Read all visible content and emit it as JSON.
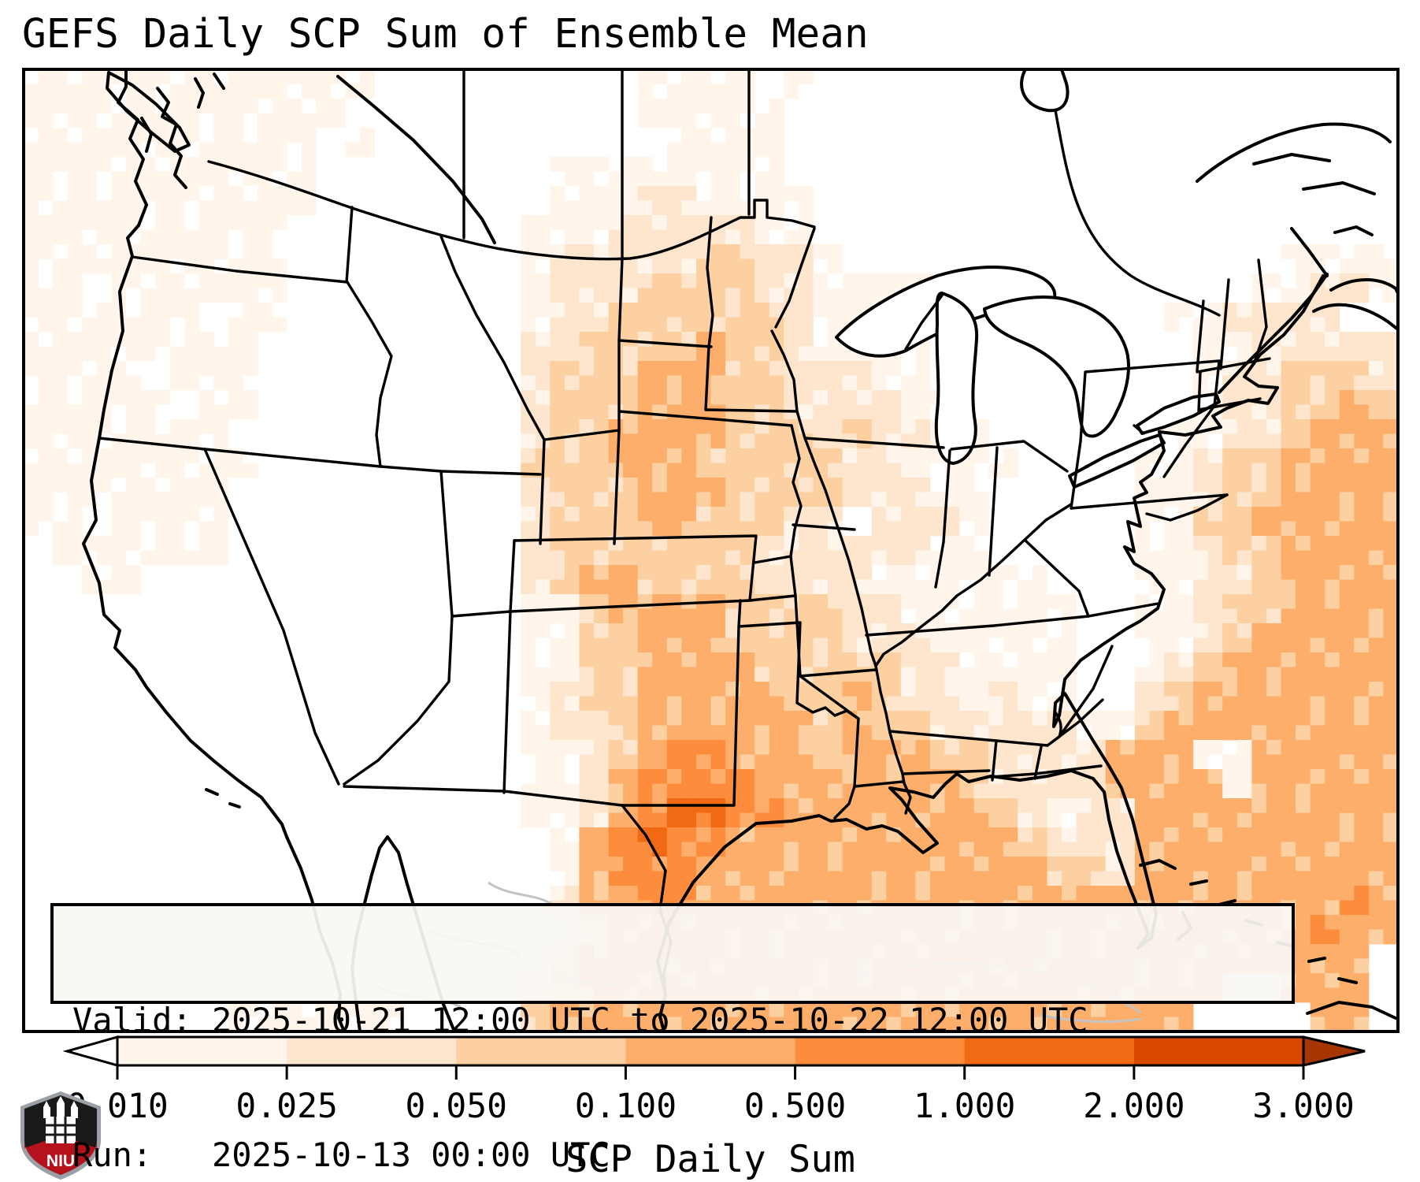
{
  "title": "GEFS Daily SCP Sum of Ensemble Mean",
  "info": {
    "line1": "Valid: 2025-10-21 12:00 UTC to 2025-10-22 12:00 UTC",
    "line2": "Run:   2025-10-13 00:00 UTC"
  },
  "colorbar": {
    "label": "SCP Daily Sum",
    "tick_labels": [
      "0.010",
      "0.025",
      "0.050",
      "0.100",
      "0.500",
      "1.000",
      "2.000",
      "3.000"
    ],
    "segment_colors": [
      "#fff5eb",
      "#fee6ce",
      "#fdd0a2",
      "#fdae6b",
      "#fd8d3c",
      "#f16913",
      "#d94801"
    ],
    "under_color": "#ffffff",
    "over_color": "#a63603",
    "outline_color": "#000000"
  },
  "logo": {
    "text": "NIU",
    "shield_black": "#1a1a1a",
    "shield_red": "#b5121b",
    "shield_trim": "#9aa0a6"
  },
  "chart_data": {
    "type": "heatmap",
    "title": "GEFS Daily SCP Sum of Ensemble Mean",
    "valid": "2025-10-21 12:00 UTC to 2025-10-22 12:00 UTC",
    "run": "2025-10-13 00:00 UTC",
    "colorbar_label": "SCP Daily Sum",
    "levels": [
      0.01,
      0.025,
      0.05,
      0.1,
      0.5,
      1.0,
      2.0,
      3.0
    ],
    "palette": [
      "#ffffff",
      "#fff5eb",
      "#fee6ce",
      "#fdd0a2",
      "#fdae6b",
      "#fd8d3c",
      "#f16913",
      "#d94801"
    ],
    "legend_note": "grid codes: .=<0.01, 1=0.01-0.025, 2=0.025-0.05, 3=0.05-0.1, 4=0.1-0.5, 5=0.5-1, 6=1-2, 7=2-3",
    "grid_rows": [
      "111111111111.........1111.1....................",
      "11111111111..........11111.....................",
      "1111111111.1..........1111.....................",
      "1111111111........11111111.....................",
      "1111111111........111221111....................",
      "111111111........1112222211....................",
      "111111111........12222233221...............1111",
      "11.111111........122233332211111..........11221",
      "111111.11........1223333332111.........112222..",
      "11111111.........22333343321111.........1122222",
      "1111.111.........23334443322211.........1223332",
      "11111.11.........233344433222211........1223343",
      "1111111..........2334444333232211......11223444",
      "11111111.........33344433333221111....112334444",
      "1111111..........2333444333322211.....112334444",
      "11.1111..........23334433322 2221.....113344444",
      ".111111..........2333333322222211.....112334444",
      "..11.............234433332222111111...112234444",
      ".................1134444333322111111..112334444",
      ".................1133444333322211111..112344444",
      ".................1133444433333221111..123444444",
      ".................1233444443343221211..234444444",
      ".................122344444434332222211344444444",
      ".................112345544434443322224441144444",
      ".................112455554444444322224444144444",
      ".................112456655444444432122444444444",
      "..................14565544444444443222444444444",
      "..................14555444444444444332444444444",
      "..................24455444444444444444444444454",
      "..................13444444444444444444444444544",
      "..........111....13444444444444444444444444444",
      ".........1111....234444444444444444444444..444",
      ".......111111....34444444444444444444444....44"
    ]
  }
}
